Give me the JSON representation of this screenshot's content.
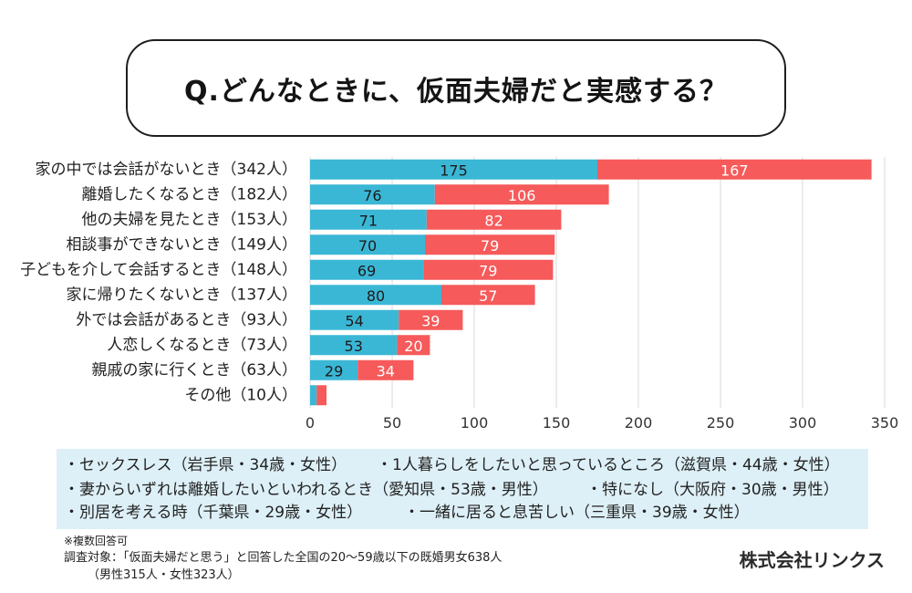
{
  "chart_data": {
    "type": "bar",
    "horizontal": true,
    "stacked": true,
    "title": "Q.どんなときに、仮面夫婦だと実感する？",
    "categories": [
      "家の中では会話がないとき（342人）",
      "離婚したくなるとき（182人）",
      "他の夫婦を見たとき（153人）",
      "相談事ができないとき（149人）",
      "子どもを介して会話するとき（148人）",
      "家に帰りたくないとき（137人）",
      "外では会話があるとき（93人）",
      "人恋しくなるとき（73人）",
      "親戚の家に行くとき（63人）",
      "その他（10人）"
    ],
    "series": [
      {
        "color": "#3bb7d6",
        "label_color": "#1b1b1b",
        "values": [
          175,
          76,
          71,
          70,
          69,
          80,
          54,
          53,
          29,
          4
        ]
      },
      {
        "color": "#f65a5a",
        "label_color": "#ffffff",
        "values": [
          167,
          106,
          82,
          79,
          79,
          57,
          39,
          20,
          34,
          6
        ]
      }
    ],
    "xticks": [
      0,
      50,
      100,
      150,
      200,
      250,
      300,
      350
    ],
    "xlim": [
      0,
      350
    ],
    "grid": true
  },
  "comments": {
    "rows": [
      [
        "・セックスレス（岩手県・34歳・女性）",
        "・1人暮らしをしたいと思っているところ（滋賀県・44歳・女性）"
      ],
      [
        "・妻からいずれは離婚したいといわれるとき（愛知県・53歳・男性）",
        "・特になし（大阪府・30歳・男性）"
      ],
      [
        "・別居を考える時（千葉県・29歳・女性）",
        "・一緒に居ると息苦しい（三重県・39歳・女性）"
      ]
    ]
  },
  "notes": {
    "multiple_answers": "※複数回答可",
    "target": "調査対象：「仮面夫婦だと思う」と回答した全国の20〜59歳以下の既婚男女638人",
    "breakdown": "（男性315人・女性323人）"
  },
  "company": "株式会社リンクス"
}
